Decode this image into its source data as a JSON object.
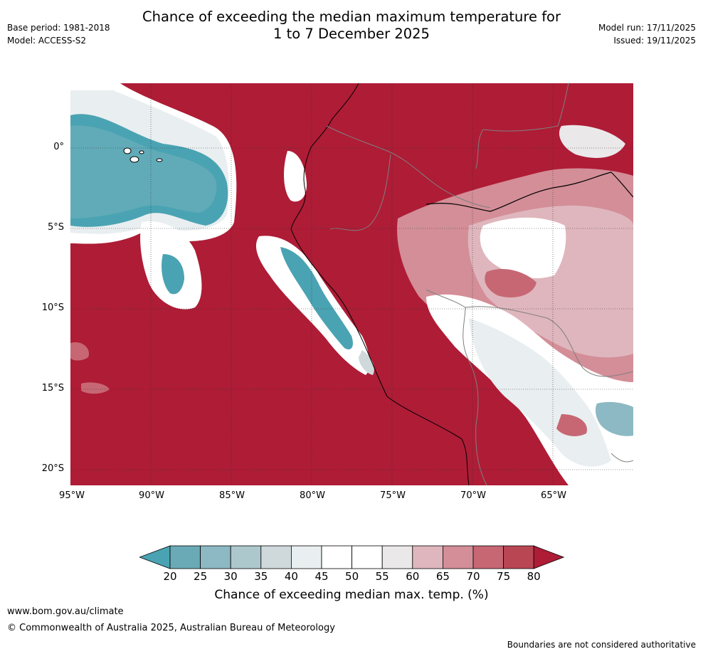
{
  "title": {
    "line1": "Chance of exceeding the median maximum temperature for",
    "line2": "1 to 7 December 2025"
  },
  "meta_left": {
    "base_period": "Base period: 1981-2018",
    "model": "Model: ACCESS-S2"
  },
  "meta_right": {
    "model_run": "Model run: 17/11/2025",
    "issued": "Issued: 19/11/2025"
  },
  "map": {
    "lon_labels": [
      "95°W",
      "90°W",
      "85°W",
      "80°W",
      "75°W",
      "70°W",
      "65°W"
    ],
    "lat_labels": [
      "0°",
      "5°S",
      "10°S",
      "15°S",
      "20°S"
    ]
  },
  "colorbar": {
    "ticks": [
      "20",
      "25",
      "30",
      "35",
      "40",
      "45",
      "50",
      "55",
      "60",
      "65",
      "70",
      "75",
      "80"
    ],
    "colors": [
      "#4aa3b2",
      "#6aaab6",
      "#8cb9c3",
      "#adc8cd",
      "#cfd9dc",
      "#e9eef0",
      "#ffffff",
      "#ffffff",
      "#ebe8ea",
      "#dfb6bd",
      "#d38e98",
      "#c76774",
      "#b94653",
      "#ae1c36"
    ],
    "label": "Chance of exceeding median max. temp. (%)"
  },
  "footer": {
    "url": "www.bom.gov.au/climate",
    "copyright": "© Commonwealth of Australia 2025, Australian Bureau of Meteorology",
    "disclaimer": "Boundaries are not considered authoritative"
  }
}
